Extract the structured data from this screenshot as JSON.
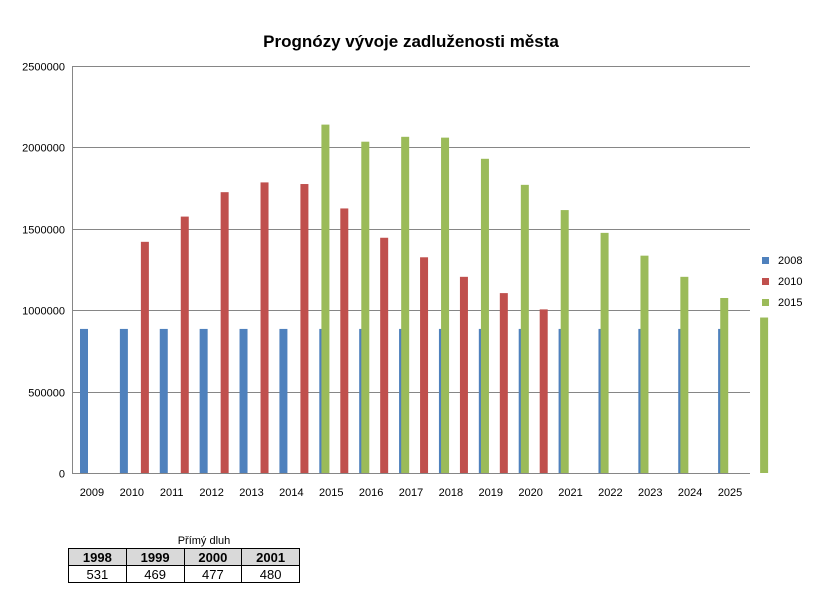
{
  "chart_data": {
    "type": "bar",
    "title": "Prognózy vývoje zadluženosti města",
    "categories": [
      "2009",
      "2010",
      "2011",
      "2012",
      "2013",
      "2014",
      "2015",
      "2016",
      "2017",
      "2018",
      "2019",
      "2020",
      "2021",
      "2022",
      "2023",
      "2024",
      "2025"
    ],
    "ylim": [
      0,
      2500000
    ],
    "yticks": [
      0,
      500000,
      1000000,
      1500000,
      2000000,
      2500000
    ],
    "grid": true,
    "legend_position": "right",
    "series": [
      {
        "name": "2008",
        "color": "#4f81bd",
        "values": [
          885000,
          885000,
          885000,
          885000,
          885000,
          885000,
          885000,
          885000,
          885000,
          885000,
          885000,
          885000,
          885000,
          885000,
          885000,
          885000,
          885000
        ]
      },
      {
        "name": "2010",
        "color": "#c0504d",
        "values": [
          null,
          1420000,
          1575000,
          1725000,
          1785000,
          1775000,
          1625000,
          1445000,
          1325000,
          1205000,
          1105000,
          1005000,
          null,
          null,
          null,
          null,
          null
        ]
      },
      {
        "name": "2015",
        "color": "#9bbb59",
        "values": [
          null,
          null,
          null,
          null,
          null,
          2140000,
          2035000,
          2065000,
          2060000,
          1930000,
          1770000,
          1615000,
          1475000,
          1335000,
          1205000,
          1075000,
          955000
        ]
      }
    ]
  },
  "table": {
    "caption": "Přímý dluh",
    "headers": [
      "1998",
      "1999",
      "2000",
      "2001"
    ],
    "values": [
      "531",
      "469",
      "477",
      "480"
    ]
  }
}
